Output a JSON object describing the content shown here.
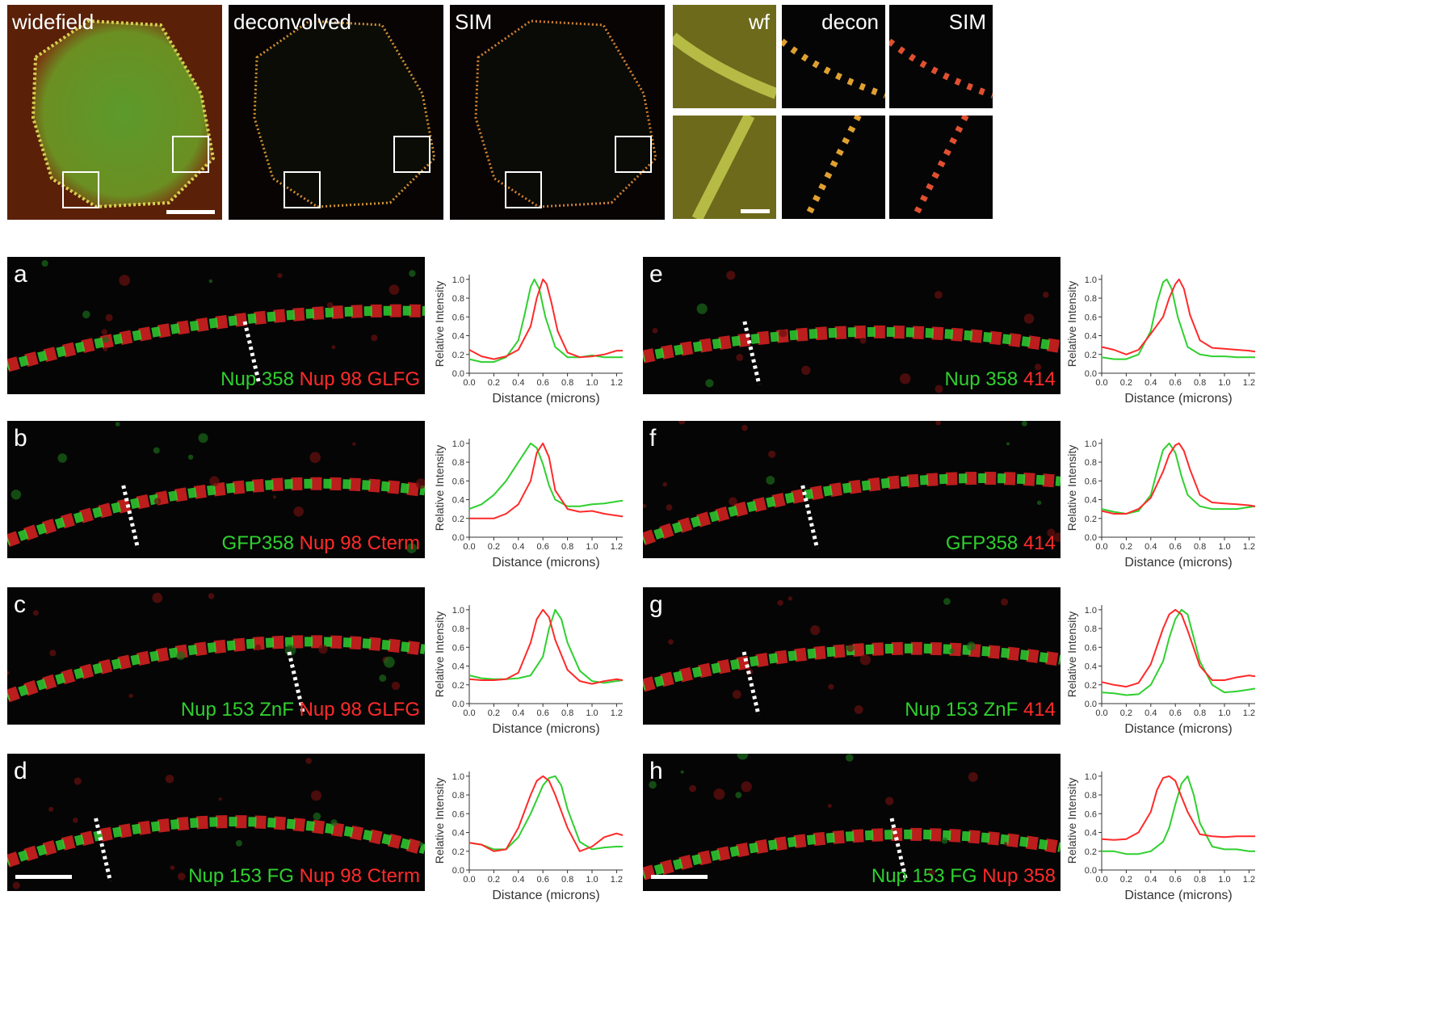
{
  "top_row": [
    {
      "label": "widefield"
    },
    {
      "label": "deconvolved"
    },
    {
      "label": "SIM"
    },
    {
      "label": "wf"
    },
    {
      "label": "decon"
    },
    {
      "label": "SIM"
    }
  ],
  "panels": [
    {
      "letter": "a",
      "green": "Nup 358",
      "red": "Nup 98 GLFG"
    },
    {
      "letter": "b",
      "green": "GFP358",
      "red": "Nup 98 Cterm"
    },
    {
      "letter": "c",
      "green": "Nup 153 ZnF",
      "red": "Nup 98 GLFG"
    },
    {
      "letter": "d",
      "green": "Nup 153 FG",
      "red": "Nup 98 Cterm"
    },
    {
      "letter": "e",
      "green": "Nup 358",
      "red": "414"
    },
    {
      "letter": "f",
      "green": "GFP358",
      "red": "414"
    },
    {
      "letter": "g",
      "green": "Nup 153 ZnF",
      "red": "414"
    },
    {
      "letter": "h",
      "green": "Nup 153 FG",
      "red": "Nup 358"
    }
  ],
  "colors": {
    "green": "#2fd02f",
    "red": "#ff2a2a"
  },
  "chart_data": [
    {
      "panel": "a",
      "type": "line",
      "xlabel": "Distance (microns)",
      "ylabel": "Relative Intensity",
      "xlim": [
        0,
        1.25
      ],
      "ylim": [
        0,
        1.05
      ],
      "xticks": [
        "0.0",
        "0.2",
        "0.4",
        "0.6",
        "0.8",
        "1.0",
        "1.2"
      ],
      "yticks": [
        "0.0",
        "0.2",
        "0.4",
        "0.6",
        "0.8",
        "1.0"
      ],
      "series": [
        {
          "color": "green",
          "x": [
            0,
            0.1,
            0.2,
            0.3,
            0.4,
            0.45,
            0.5,
            0.53,
            0.57,
            0.62,
            0.7,
            0.8,
            0.9,
            1.0,
            1.1,
            1.2,
            1.25
          ],
          "y": [
            0.15,
            0.12,
            0.12,
            0.17,
            0.35,
            0.62,
            0.92,
            1.0,
            0.9,
            0.6,
            0.28,
            0.17,
            0.17,
            0.19,
            0.17,
            0.17,
            0.17
          ]
        },
        {
          "color": "red",
          "x": [
            0,
            0.1,
            0.2,
            0.3,
            0.4,
            0.5,
            0.55,
            0.6,
            0.63,
            0.67,
            0.72,
            0.8,
            0.9,
            1.0,
            1.1,
            1.2,
            1.25
          ],
          "y": [
            0.25,
            0.18,
            0.15,
            0.18,
            0.25,
            0.5,
            0.8,
            1.0,
            0.95,
            0.75,
            0.45,
            0.22,
            0.17,
            0.18,
            0.2,
            0.24,
            0.24
          ]
        }
      ]
    },
    {
      "panel": "b",
      "type": "line",
      "xlabel": "Distance (microns)",
      "ylabel": "Relative Intensity",
      "xlim": [
        0,
        1.25
      ],
      "ylim": [
        0,
        1.05
      ],
      "xticks": [
        "0.0",
        "0.2",
        "0.4",
        "0.6",
        "0.8",
        "1.0",
        "1.2"
      ],
      "yticks": [
        "0.0",
        "0.2",
        "0.4",
        "0.6",
        "0.8",
        "1.0"
      ],
      "series": [
        {
          "color": "green",
          "x": [
            0,
            0.1,
            0.2,
            0.3,
            0.4,
            0.5,
            0.55,
            0.6,
            0.65,
            0.7,
            0.8,
            0.9,
            1.0,
            1.1,
            1.2,
            1.25
          ],
          "y": [
            0.3,
            0.35,
            0.45,
            0.6,
            0.8,
            1.0,
            0.95,
            0.78,
            0.55,
            0.4,
            0.33,
            0.33,
            0.35,
            0.36,
            0.38,
            0.39
          ]
        },
        {
          "color": "red",
          "x": [
            0,
            0.1,
            0.2,
            0.3,
            0.4,
            0.5,
            0.55,
            0.6,
            0.65,
            0.7,
            0.8,
            0.9,
            1.0,
            1.1,
            1.2,
            1.25
          ],
          "y": [
            0.2,
            0.2,
            0.2,
            0.25,
            0.35,
            0.6,
            0.9,
            1.0,
            0.85,
            0.5,
            0.3,
            0.27,
            0.28,
            0.25,
            0.23,
            0.22
          ]
        }
      ]
    },
    {
      "panel": "c",
      "type": "line",
      "xlabel": "Distance (microns)",
      "ylabel": "Relative Intensity",
      "xlim": [
        0,
        1.25
      ],
      "ylim": [
        0,
        1.05
      ],
      "xticks": [
        "0.0",
        "0.2",
        "0.4",
        "0.6",
        "0.8",
        "1.0",
        "1.2"
      ],
      "yticks": [
        "0.0",
        "0.2",
        "0.4",
        "0.6",
        "0.8",
        "1.0"
      ],
      "series": [
        {
          "color": "green",
          "x": [
            0,
            0.1,
            0.2,
            0.3,
            0.4,
            0.5,
            0.6,
            0.65,
            0.7,
            0.75,
            0.8,
            0.9,
            1.0,
            1.1,
            1.2,
            1.25
          ],
          "y": [
            0.3,
            0.27,
            0.26,
            0.26,
            0.27,
            0.3,
            0.5,
            0.8,
            1.0,
            0.9,
            0.65,
            0.35,
            0.24,
            0.22,
            0.24,
            0.25
          ]
        },
        {
          "color": "red",
          "x": [
            0,
            0.1,
            0.2,
            0.3,
            0.4,
            0.5,
            0.55,
            0.6,
            0.65,
            0.7,
            0.8,
            0.9,
            1.0,
            1.1,
            1.2,
            1.25
          ],
          "y": [
            0.26,
            0.25,
            0.25,
            0.26,
            0.33,
            0.65,
            0.9,
            1.0,
            0.92,
            0.68,
            0.36,
            0.24,
            0.21,
            0.24,
            0.26,
            0.25
          ]
        }
      ]
    },
    {
      "panel": "d",
      "type": "line",
      "xlabel": "Distance (microns)",
      "ylabel": "Relative Intensity",
      "xlim": [
        0,
        1.25
      ],
      "ylim": [
        0,
        1.05
      ],
      "xticks": [
        "0.0",
        "0.2",
        "0.4",
        "0.6",
        "0.8",
        "1.0",
        "1.2"
      ],
      "yticks": [
        "0.0",
        "0.2",
        "0.4",
        "0.6",
        "0.8",
        "1.0"
      ],
      "series": [
        {
          "color": "green",
          "x": [
            0,
            0.1,
            0.2,
            0.3,
            0.4,
            0.5,
            0.6,
            0.65,
            0.7,
            0.75,
            0.8,
            0.9,
            1.0,
            1.1,
            1.2,
            1.25
          ],
          "y": [
            0.29,
            0.27,
            0.22,
            0.22,
            0.35,
            0.6,
            0.9,
            0.98,
            1.0,
            0.9,
            0.65,
            0.3,
            0.22,
            0.24,
            0.25,
            0.25
          ]
        },
        {
          "color": "red",
          "x": [
            0,
            0.1,
            0.2,
            0.3,
            0.4,
            0.5,
            0.55,
            0.6,
            0.65,
            0.7,
            0.8,
            0.9,
            1.0,
            1.1,
            1.2,
            1.25
          ],
          "y": [
            0.29,
            0.27,
            0.2,
            0.22,
            0.45,
            0.8,
            0.95,
            1.0,
            0.95,
            0.8,
            0.45,
            0.2,
            0.25,
            0.35,
            0.39,
            0.37
          ]
        }
      ]
    },
    {
      "panel": "e",
      "type": "line",
      "xlabel": "Distance (microns)",
      "ylabel": "Relative Intensity",
      "xlim": [
        0,
        1.25
      ],
      "ylim": [
        0,
        1.05
      ],
      "xticks": [
        "0.0",
        "0.2",
        "0.4",
        "0.6",
        "0.8",
        "1.0",
        "1.2"
      ],
      "yticks": [
        "0.0",
        "0.2",
        "0.4",
        "0.6",
        "0.8",
        "1.0"
      ],
      "series": [
        {
          "color": "green",
          "x": [
            0,
            0.1,
            0.2,
            0.3,
            0.4,
            0.45,
            0.5,
            0.53,
            0.57,
            0.62,
            0.7,
            0.8,
            0.9,
            1.0,
            1.1,
            1.2,
            1.25
          ],
          "y": [
            0.17,
            0.15,
            0.15,
            0.2,
            0.45,
            0.75,
            0.97,
            1.0,
            0.9,
            0.6,
            0.28,
            0.2,
            0.18,
            0.18,
            0.17,
            0.17,
            0.17
          ]
        },
        {
          "color": "red",
          "x": [
            0,
            0.1,
            0.2,
            0.3,
            0.4,
            0.5,
            0.55,
            0.6,
            0.63,
            0.67,
            0.72,
            0.8,
            0.9,
            1.0,
            1.1,
            1.2,
            1.25
          ],
          "y": [
            0.28,
            0.25,
            0.2,
            0.25,
            0.42,
            0.6,
            0.8,
            0.95,
            1.0,
            0.9,
            0.62,
            0.35,
            0.27,
            0.26,
            0.25,
            0.24,
            0.23
          ]
        }
      ]
    },
    {
      "panel": "f",
      "type": "line",
      "xlabel": "Distance (microns)",
      "ylabel": "Relative Intensity",
      "xlim": [
        0,
        1.25
      ],
      "ylim": [
        0,
        1.05
      ],
      "xticks": [
        "0.0",
        "0.2",
        "0.4",
        "0.6",
        "0.8",
        "1.0",
        "1.2"
      ],
      "yticks": [
        "0.0",
        "0.2",
        "0.4",
        "0.6",
        "0.8",
        "1.0"
      ],
      "series": [
        {
          "color": "green",
          "x": [
            0,
            0.1,
            0.2,
            0.3,
            0.4,
            0.45,
            0.5,
            0.55,
            0.6,
            0.65,
            0.7,
            0.8,
            0.9,
            1.0,
            1.1,
            1.2,
            1.25
          ],
          "y": [
            0.3,
            0.27,
            0.25,
            0.28,
            0.45,
            0.7,
            0.93,
            1.0,
            0.9,
            0.65,
            0.45,
            0.33,
            0.3,
            0.3,
            0.3,
            0.32,
            0.33
          ]
        },
        {
          "color": "red",
          "x": [
            0,
            0.1,
            0.2,
            0.3,
            0.4,
            0.5,
            0.55,
            0.6,
            0.63,
            0.67,
            0.72,
            0.8,
            0.9,
            1.0,
            1.1,
            1.2,
            1.25
          ],
          "y": [
            0.28,
            0.25,
            0.25,
            0.3,
            0.42,
            0.7,
            0.88,
            0.98,
            1.0,
            0.92,
            0.72,
            0.45,
            0.37,
            0.36,
            0.35,
            0.34,
            0.33
          ]
        }
      ]
    },
    {
      "panel": "g",
      "type": "line",
      "xlabel": "Distance (microns)",
      "ylabel": "Relative Intensity",
      "xlim": [
        0,
        1.25
      ],
      "ylim": [
        0,
        1.05
      ],
      "xticks": [
        "0.0",
        "0.2",
        "0.4",
        "0.6",
        "0.8",
        "1.0",
        "1.2"
      ],
      "yticks": [
        "0.0",
        "0.2",
        "0.4",
        "0.6",
        "0.8",
        "1.0"
      ],
      "series": [
        {
          "color": "green",
          "x": [
            0,
            0.1,
            0.2,
            0.3,
            0.4,
            0.5,
            0.55,
            0.6,
            0.65,
            0.7,
            0.75,
            0.8,
            0.9,
            1.0,
            1.1,
            1.2,
            1.25
          ],
          "y": [
            0.12,
            0.11,
            0.09,
            0.1,
            0.2,
            0.45,
            0.7,
            0.9,
            1.0,
            0.95,
            0.7,
            0.45,
            0.2,
            0.12,
            0.13,
            0.15,
            0.16
          ]
        },
        {
          "color": "red",
          "x": [
            0,
            0.1,
            0.2,
            0.3,
            0.4,
            0.5,
            0.55,
            0.6,
            0.65,
            0.7,
            0.8,
            0.9,
            1.0,
            1.1,
            1.2,
            1.25
          ],
          "y": [
            0.23,
            0.2,
            0.18,
            0.22,
            0.42,
            0.8,
            0.95,
            1.0,
            0.95,
            0.78,
            0.4,
            0.25,
            0.25,
            0.28,
            0.3,
            0.29
          ]
        }
      ]
    },
    {
      "panel": "h",
      "type": "line",
      "xlabel": "Distance (microns)",
      "ylabel": "Relative Intensity",
      "xlim": [
        0,
        1.25
      ],
      "ylim": [
        0,
        1.05
      ],
      "xticks": [
        "0.0",
        "0.2",
        "0.4",
        "0.6",
        "0.8",
        "1.0",
        "1.2"
      ],
      "yticks": [
        "0.0",
        "0.2",
        "0.4",
        "0.6",
        "0.8",
        "1.0"
      ],
      "series": [
        {
          "color": "green",
          "x": [
            0,
            0.1,
            0.2,
            0.3,
            0.4,
            0.5,
            0.55,
            0.6,
            0.65,
            0.7,
            0.75,
            0.8,
            0.9,
            1.0,
            1.1,
            1.2,
            1.25
          ],
          "y": [
            0.2,
            0.2,
            0.17,
            0.17,
            0.2,
            0.3,
            0.45,
            0.7,
            0.92,
            1.0,
            0.8,
            0.5,
            0.25,
            0.22,
            0.22,
            0.2,
            0.2
          ]
        },
        {
          "color": "red",
          "x": [
            0,
            0.1,
            0.2,
            0.3,
            0.4,
            0.45,
            0.5,
            0.55,
            0.6,
            0.65,
            0.7,
            0.8,
            0.9,
            1.0,
            1.1,
            1.2,
            1.25
          ],
          "y": [
            0.33,
            0.32,
            0.33,
            0.4,
            0.62,
            0.85,
            0.98,
            1.0,
            0.95,
            0.78,
            0.62,
            0.38,
            0.36,
            0.35,
            0.36,
            0.36,
            0.36
          ]
        }
      ]
    }
  ]
}
